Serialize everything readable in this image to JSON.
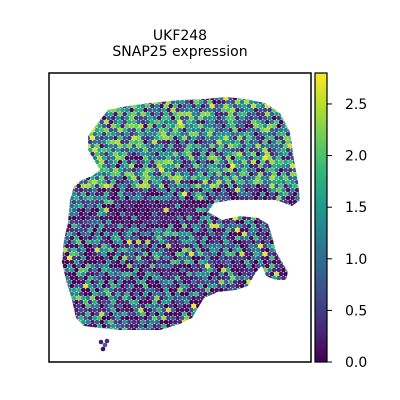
{
  "chart_data": {
    "type": "scatter",
    "title_lines": [
      "UKF248",
      "SNAP25 expression"
    ],
    "xlabel": "",
    "ylabel": "",
    "grid": false,
    "legend": "colorbar-right",
    "colorbar": {
      "colormap": "viridis",
      "range": [
        0.0,
        2.8
      ],
      "ticks": [
        0.0,
        0.5,
        1.0,
        1.5,
        2.0,
        2.5
      ],
      "tick_labels": [
        "0.0",
        "0.5",
        "1.0",
        "1.5",
        "2.0",
        "2.5"
      ]
    },
    "viridis_stops": [
      "#440154",
      "#482878",
      "#3e4989",
      "#31688e",
      "#26828e",
      "#1f9e89",
      "#35b779",
      "#6ece58",
      "#b5de2b",
      "#fde725"
    ]
  }
}
